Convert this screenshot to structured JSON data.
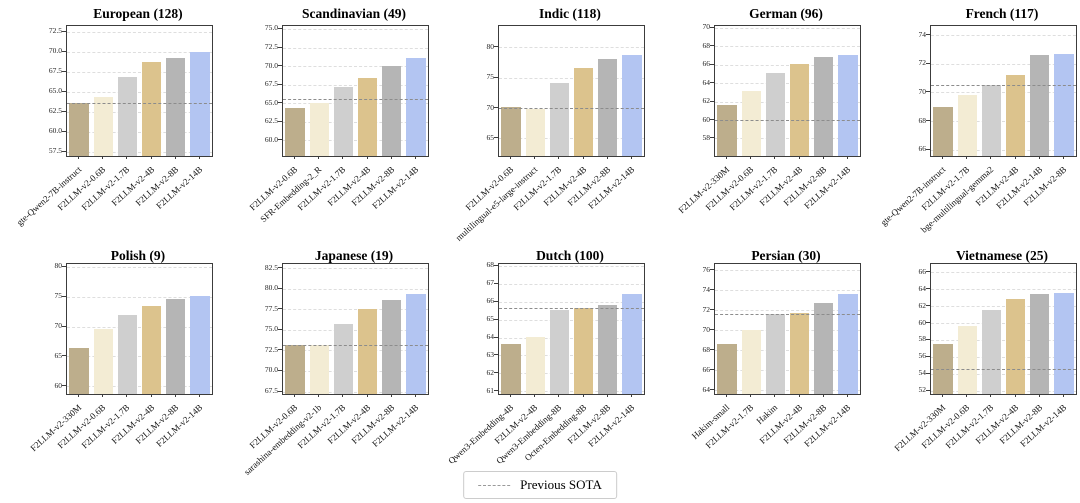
{
  "figure": {
    "background": "#ffffff"
  },
  "legend": {
    "label": "Previous SOTA",
    "line_style": "dashed",
    "line_color": "#9a9a9a"
  },
  "palette": {
    "bar_colors": [
      "#bdae8c",
      "#f3ecd4",
      "#cfcfcf",
      "#dcc38d",
      "#b5b5b5",
      "#b3c5f2"
    ],
    "grid_color": "#dedede",
    "sota_line_color": "#8c8c8c",
    "axis_color": "#3c3c3c"
  },
  "chart_data": [
    {
      "type": "bar",
      "id": "european",
      "title": "European (128)",
      "categories": [
        "gte-Qwen2-7B-instruct",
        "F2LLM-v2-0.6B",
        "F2LLM-v2-1.7B",
        "F2LLM-v2-4B",
        "F2LLM-v2-8B",
        "F2LLM-v2-14B"
      ],
      "values": [
        63.6,
        64.4,
        66.9,
        68.7,
        69.2,
        70.0
      ],
      "previous_sota": 63.6,
      "yticks": [
        57.5,
        60.0,
        62.5,
        65.0,
        67.5,
        70.0,
        72.5
      ],
      "ylim": [
        57.0,
        73.2
      ],
      "tick_decimals": 1,
      "grid": true,
      "legend_position": "bottom-center"
    },
    {
      "type": "bar",
      "id": "scandinavian",
      "title": "Scandinavian (49)",
      "categories": [
        "F2LLM-v2-0.6B",
        "SFR-Embedding-2_R",
        "F2LLM-v2-1.7B",
        "F2LLM-v2-4B",
        "F2LLM-v2-8B",
        "F2LLM-v2-14B"
      ],
      "values": [
        64.3,
        65.1,
        67.2,
        68.4,
        70.0,
        71.1
      ],
      "previous_sota": 65.6,
      "yticks": [
        60.0,
        62.5,
        65.0,
        67.5,
        70.0,
        72.5,
        75.0
      ],
      "ylim": [
        57.9,
        75.4
      ],
      "tick_decimals": 1,
      "grid": true,
      "legend_position": "bottom-center"
    },
    {
      "type": "bar",
      "id": "indic",
      "title": "Indic (118)",
      "categories": [
        "F2LLM-v2-0.6B",
        "multilingual-e5-large-instruct",
        "F2LLM-v2-1.7B",
        "F2LLM-v2-4B",
        "F2LLM-v2-8B",
        "F2LLM-v2-14B"
      ],
      "values": [
        70.1,
        69.9,
        74.1,
        76.6,
        78.0,
        78.8
      ],
      "previous_sota": 70.0,
      "yticks": [
        65,
        70,
        75,
        80
      ],
      "ylim": [
        62.1,
        83.5
      ],
      "tick_decimals": 0,
      "grid": true,
      "legend_position": "bottom-center"
    },
    {
      "type": "bar",
      "id": "german",
      "title": "German (96)",
      "categories": [
        "F2LLM-v2-330M",
        "F2LLM-v2-0.6B",
        "F2LLM-v2-1.7B",
        "F2LLM-v2-4B",
        "F2LLM-v2-8B",
        "F2LLM-v2-14B"
      ],
      "values": [
        61.6,
        63.1,
        65.1,
        66.1,
        66.8,
        67.1
      ],
      "previous_sota": 60.0,
      "yticks": [
        58,
        60,
        62,
        64,
        66,
        68,
        70
      ],
      "ylim": [
        56.1,
        70.2
      ],
      "tick_decimals": 0,
      "grid": true,
      "legend_position": "bottom-center"
    },
    {
      "type": "bar",
      "id": "french",
      "title": "French (117)",
      "categories": [
        "gte-Qwen2-7B-instruct",
        "F2LLM-v2-1.7B",
        "bge-multilingual-gemma2",
        "F2LLM-v2-4B",
        "F2LLM-v2-14B",
        "F2LLM-v2-8B"
      ],
      "values": [
        69.0,
        69.8,
        70.5,
        71.2,
        72.6,
        72.7
      ],
      "previous_sota": 70.5,
      "yticks": [
        66,
        68,
        70,
        72,
        74
      ],
      "ylim": [
        65.55,
        74.65
      ],
      "tick_decimals": 0,
      "grid": true,
      "legend_position": "bottom-center"
    },
    {
      "type": "bar",
      "id": "polish",
      "title": "Polish (9)",
      "categories": [
        "F2LLM-v2-330M",
        "F2LLM-v2-0.6B",
        "F2LLM-v2-1.7B",
        "F2LLM-v2-4B",
        "F2LLM-v2-8B",
        "F2LLM-v2-14B"
      ],
      "values": [
        66.5,
        69.6,
        72.0,
        73.4,
        74.6,
        75.1
      ],
      "previous_sota": null,
      "yticks": [
        60,
        65,
        70,
        75,
        80
      ],
      "ylim": [
        58.7,
        80.5
      ],
      "tick_decimals": 0,
      "grid": true,
      "legend_position": "bottom-center"
    },
    {
      "type": "bar",
      "id": "japanese",
      "title": "Japanese (19)",
      "categories": [
        "F2LLM-v2-0.6B",
        "sarashina-embedding-v2-1b",
        "F2LLM-v2-1.7B",
        "F2LLM-v2-4B",
        "F2LLM-v2-8B",
        "F2LLM-v2-14B"
      ],
      "values": [
        73.2,
        73.1,
        75.7,
        77.5,
        78.6,
        79.3
      ],
      "previous_sota": 73.2,
      "yticks": [
        67.5,
        70.0,
        72.5,
        75.0,
        77.5,
        80.0,
        82.5
      ],
      "ylim": [
        67.2,
        83.0
      ],
      "tick_decimals": 1,
      "grid": true,
      "legend_position": "bottom-center"
    },
    {
      "type": "bar",
      "id": "dutch",
      "title": "Dutch (100)",
      "categories": [
        "Qwen3-Embedding-4B",
        "F2LLM-v2-4B",
        "Qwen3-Embedding-8B",
        "Octen-Embedding-8B",
        "F2LLM-v2-8B",
        "F2LLM-v2-14B"
      ],
      "values": [
        63.65,
        64.05,
        65.55,
        65.65,
        65.8,
        66.4
      ],
      "previous_sota": 65.65,
      "yticks": [
        61,
        62,
        63,
        64,
        65,
        66,
        67,
        68
      ],
      "ylim": [
        60.85,
        68.1
      ],
      "tick_decimals": 0,
      "grid": true,
      "legend_position": "bottom-center"
    },
    {
      "type": "bar",
      "id": "persian",
      "title": "Persian (30)",
      "categories": [
        "Hakim-small",
        "F2LLM-v2-1.7B",
        "Hakim",
        "F2LLM-v2-4B",
        "F2LLM-v2-8B",
        "F2LLM-v2-14B"
      ],
      "values": [
        68.6,
        70.0,
        71.6,
        71.7,
        72.7,
        73.6
      ],
      "previous_sota": 71.6,
      "yticks": [
        64,
        66,
        68,
        70,
        72,
        74,
        76
      ],
      "ylim": [
        63.6,
        76.6
      ],
      "tick_decimals": 0,
      "grid": true,
      "legend_position": "bottom-center"
    },
    {
      "type": "bar",
      "id": "vietnamese",
      "title": "Vietnamese (25)",
      "categories": [
        "F2LLM-v2-330M",
        "F2LLM-v2-0.6B",
        "F2LLM-v2-1.7B",
        "F2LLM-v2-4B",
        "F2LLM-v2-8B",
        "F2LLM-v2-14B"
      ],
      "values": [
        57.5,
        59.6,
        61.6,
        62.8,
        63.4,
        63.6
      ],
      "previous_sota": 54.6,
      "yticks": [
        52,
        54,
        56,
        58,
        60,
        62,
        64,
        66
      ],
      "ylim": [
        51.6,
        67.0
      ],
      "tick_decimals": 0,
      "grid": true,
      "legend_position": "bottom-center"
    }
  ]
}
